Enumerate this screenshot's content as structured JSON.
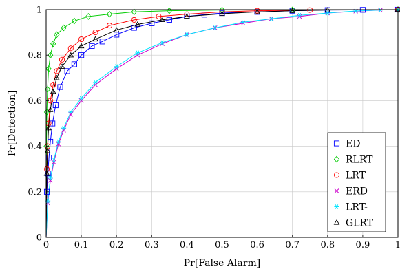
{
  "chart_data": {
    "type": "line",
    "title": "",
    "xlabel": "Pr[False Alarm]",
    "ylabel": "Pr[Detection]",
    "xlim": [
      0,
      1
    ],
    "ylim": [
      0,
      1
    ],
    "x_ticks": [
      "0",
      "0.1",
      "0.2",
      "0.3",
      "0.4",
      "0.5",
      "0.6",
      "0.7",
      "0.8",
      "0.9",
      "1"
    ],
    "y_ticks": [
      "0",
      "0.2",
      "0.4",
      "0.6",
      "0.8",
      "1"
    ],
    "grid": true,
    "legend_position": "bottom-right",
    "series": [
      {
        "name": "ED",
        "color": "#0000ff",
        "marker": "square",
        "points": [
          [
            0,
            0
          ],
          [
            0.002,
            0.2
          ],
          [
            0.005,
            0.28
          ],
          [
            0.008,
            0.35
          ],
          [
            0.012,
            0.42
          ],
          [
            0.018,
            0.5
          ],
          [
            0.027,
            0.58
          ],
          [
            0.04,
            0.66
          ],
          [
            0.06,
            0.73
          ],
          [
            0.08,
            0.76
          ],
          [
            0.1,
            0.8
          ],
          [
            0.13,
            0.84
          ],
          [
            0.16,
            0.86
          ],
          [
            0.2,
            0.89
          ],
          [
            0.25,
            0.92
          ],
          [
            0.3,
            0.94
          ],
          [
            0.35,
            0.955
          ],
          [
            0.4,
            0.97
          ],
          [
            0.45,
            0.978
          ],
          [
            0.5,
            0.985
          ],
          [
            0.6,
            0.99
          ],
          [
            0.7,
            0.995
          ],
          [
            0.8,
            0.998
          ],
          [
            0.9,
            0.999
          ],
          [
            1,
            1
          ]
        ]
      },
      {
        "name": "RLRT",
        "color": "#00cc00",
        "marker": "diamond",
        "points": [
          [
            0,
            0
          ],
          [
            0.001,
            0.4
          ],
          [
            0.002,
            0.55
          ],
          [
            0.004,
            0.65
          ],
          [
            0.007,
            0.74
          ],
          [
            0.012,
            0.8
          ],
          [
            0.02,
            0.85
          ],
          [
            0.03,
            0.89
          ],
          [
            0.05,
            0.92
          ],
          [
            0.08,
            0.95
          ],
          [
            0.12,
            0.97
          ],
          [
            0.18,
            0.98
          ],
          [
            0.25,
            0.99
          ],
          [
            0.35,
            0.995
          ],
          [
            0.5,
            0.998
          ],
          [
            0.7,
            0.999
          ],
          [
            1,
            1
          ]
        ]
      },
      {
        "name": "LRT",
        "color": "#ff0000",
        "marker": "circle",
        "points": [
          [
            0,
            0
          ],
          [
            0.002,
            0.3
          ],
          [
            0.004,
            0.4
          ],
          [
            0.007,
            0.5
          ],
          [
            0.012,
            0.6
          ],
          [
            0.02,
            0.67
          ],
          [
            0.03,
            0.73
          ],
          [
            0.045,
            0.78
          ],
          [
            0.07,
            0.83
          ],
          [
            0.1,
            0.87
          ],
          [
            0.14,
            0.9
          ],
          [
            0.18,
            0.93
          ],
          [
            0.25,
            0.955
          ],
          [
            0.32,
            0.97
          ],
          [
            0.4,
            0.98
          ],
          [
            0.5,
            0.99
          ],
          [
            0.6,
            0.995
          ],
          [
            0.75,
            0.998
          ],
          [
            1,
            1
          ]
        ]
      },
      {
        "name": "ERD",
        "color": "#cc00cc",
        "marker": "cross",
        "points": [
          [
            0,
            0
          ],
          [
            0.005,
            0.15
          ],
          [
            0.012,
            0.25
          ],
          [
            0.022,
            0.33
          ],
          [
            0.035,
            0.41
          ],
          [
            0.05,
            0.47
          ],
          [
            0.07,
            0.54
          ],
          [
            0.1,
            0.6
          ],
          [
            0.14,
            0.67
          ],
          [
            0.2,
            0.74
          ],
          [
            0.26,
            0.8
          ],
          [
            0.33,
            0.85
          ],
          [
            0.4,
            0.89
          ],
          [
            0.48,
            0.92
          ],
          [
            0.56,
            0.94
          ],
          [
            0.64,
            0.96
          ],
          [
            0.72,
            0.97
          ],
          [
            0.8,
            0.985
          ],
          [
            0.88,
            0.993
          ],
          [
            0.95,
            0.998
          ],
          [
            1,
            1
          ]
        ]
      },
      {
        "name": "LRT-",
        "color": "#00e5ff",
        "marker": "star",
        "points": [
          [
            0,
            0
          ],
          [
            0.005,
            0.16
          ],
          [
            0.012,
            0.26
          ],
          [
            0.022,
            0.34
          ],
          [
            0.035,
            0.42
          ],
          [
            0.05,
            0.48
          ],
          [
            0.07,
            0.55
          ],
          [
            0.1,
            0.61
          ],
          [
            0.14,
            0.68
          ],
          [
            0.2,
            0.75
          ],
          [
            0.26,
            0.81
          ],
          [
            0.33,
            0.855
          ],
          [
            0.4,
            0.89
          ],
          [
            0.48,
            0.92
          ],
          [
            0.56,
            0.945
          ],
          [
            0.64,
            0.96
          ],
          [
            0.72,
            0.975
          ],
          [
            0.8,
            0.985
          ],
          [
            0.88,
            0.994
          ],
          [
            0.95,
            0.998
          ],
          [
            1,
            1
          ]
        ]
      },
      {
        "name": "GLRT",
        "color": "#000000",
        "marker": "triangle",
        "points": [
          [
            0,
            0
          ],
          [
            0.002,
            0.28
          ],
          [
            0.004,
            0.38
          ],
          [
            0.007,
            0.48
          ],
          [
            0.012,
            0.56
          ],
          [
            0.02,
            0.64
          ],
          [
            0.03,
            0.7
          ],
          [
            0.045,
            0.75
          ],
          [
            0.07,
            0.8
          ],
          [
            0.1,
            0.84
          ],
          [
            0.14,
            0.87
          ],
          [
            0.2,
            0.91
          ],
          [
            0.26,
            0.935
          ],
          [
            0.33,
            0.955
          ],
          [
            0.4,
            0.97
          ],
          [
            0.5,
            0.982
          ],
          [
            0.6,
            0.99
          ],
          [
            0.7,
            0.995
          ],
          [
            0.8,
            0.998
          ],
          [
            1,
            1
          ]
        ]
      }
    ]
  }
}
